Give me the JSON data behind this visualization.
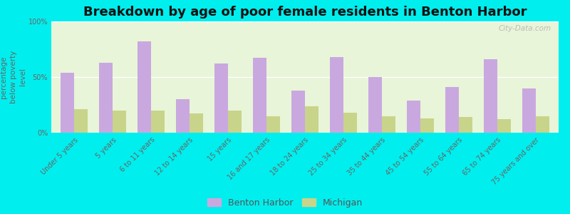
{
  "title": "Breakdown by age of poor female residents in Benton Harbor",
  "ylabel": "percentage\nbelow poverty\nlevel",
  "categories": [
    "Under 5 years",
    "5 years",
    "6 to 11 years",
    "12 to 14 years",
    "15 years",
    "16 and 17 years",
    "18 to 24 years",
    "25 to 34 years",
    "35 to 44 years",
    "45 to 54 years",
    "55 to 64 years",
    "65 to 74 years",
    "75 years and over"
  ],
  "benton_harbor": [
    54,
    63,
    82,
    30,
    62,
    67,
    38,
    68,
    50,
    29,
    41,
    66,
    40
  ],
  "michigan": [
    21,
    20,
    20,
    17,
    20,
    15,
    24,
    18,
    15,
    13,
    14,
    12,
    15
  ],
  "benton_harbor_color": "#c9a8e0",
  "michigan_color": "#c8d48a",
  "bg_color": "#e8f5d8",
  "outer_bg": "#00eeee",
  "ylim": [
    0,
    100
  ],
  "yticks": [
    0,
    50,
    100
  ],
  "ytick_labels": [
    "0%",
    "50%",
    "100%"
  ],
  "bar_width": 0.35,
  "title_fontsize": 13,
  "axis_label_fontsize": 7.5,
  "tick_fontsize": 7,
  "legend_fontsize": 9
}
